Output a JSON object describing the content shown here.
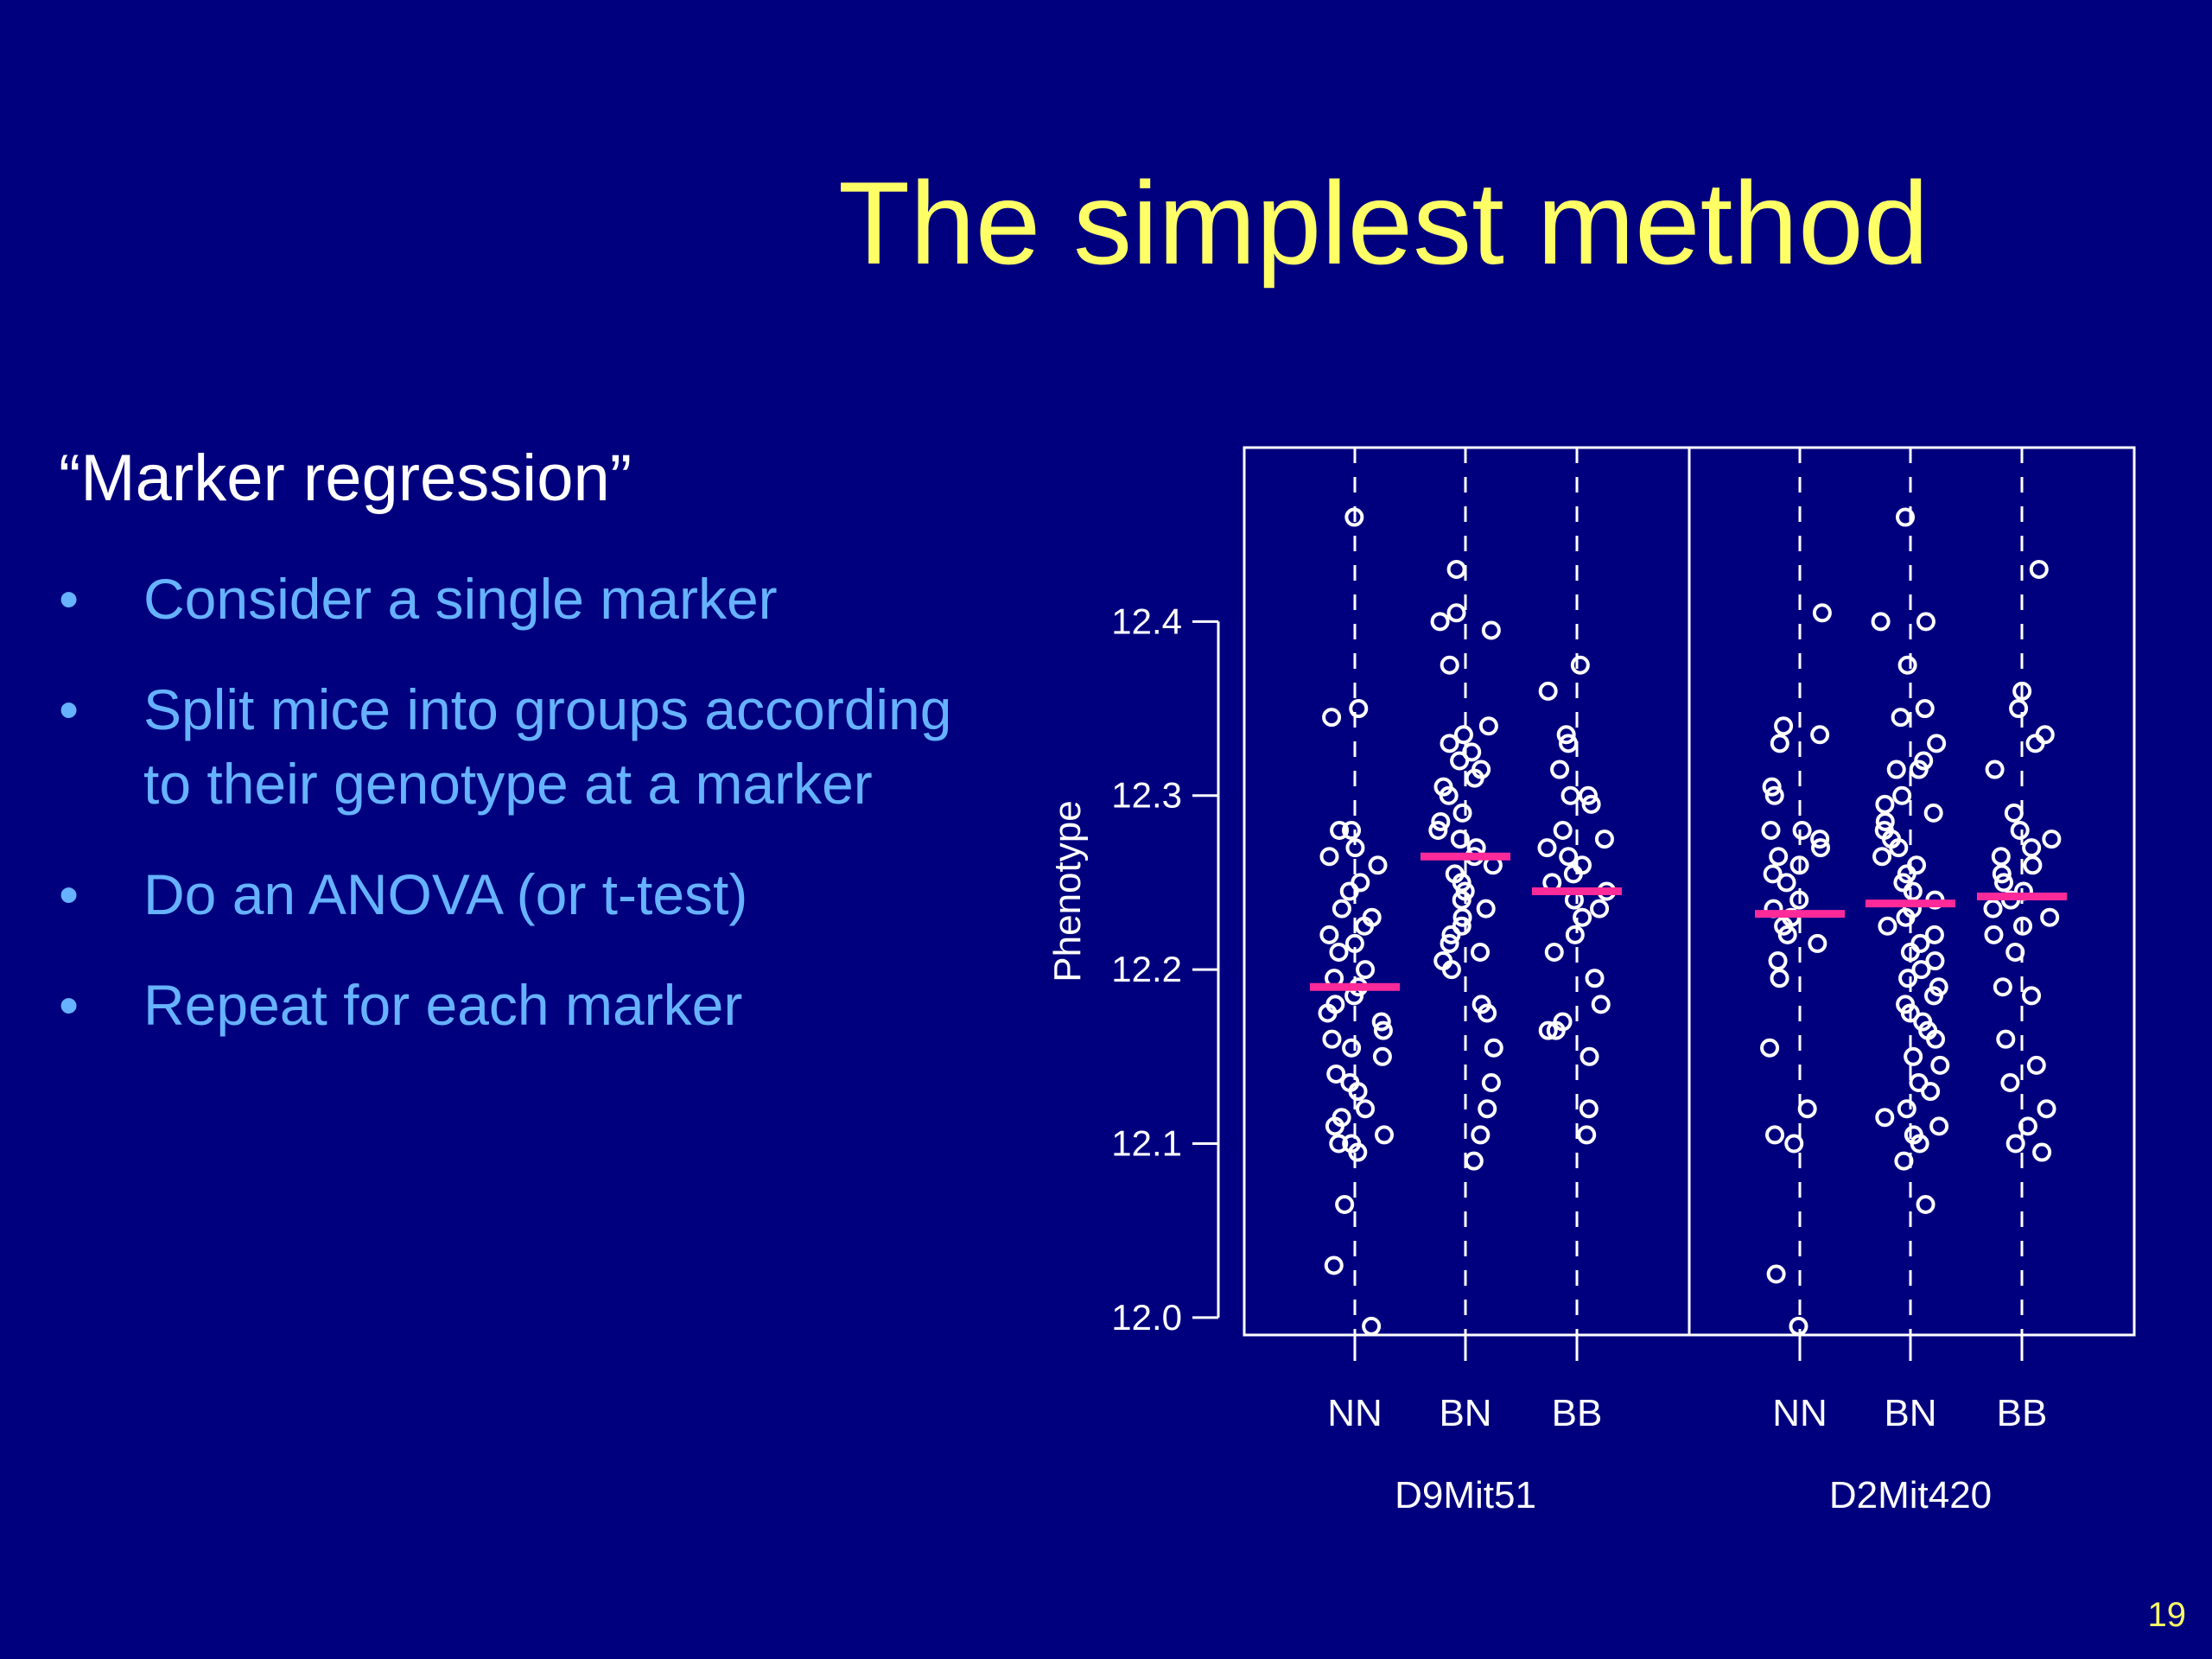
{
  "slide": {
    "title": "The simplest method",
    "heading": "“Marker regression”",
    "bullets": [
      "Consider a single marker",
      "Split mice into groups according to their genotype at a marker",
      "Do an ANOVA (or t-test)",
      "Repeat for each marker"
    ],
    "bullet_symbol": "•",
    "page_number": "19"
  },
  "colors": {
    "background": "#00007f",
    "title": "#ffff66",
    "heading": "#ffffff",
    "bullet_text": "#66b2ff",
    "points": "#ffffff",
    "means": "#ff2a9a"
  },
  "chart_data": {
    "type": "scatter",
    "ylabel": "Phenotype",
    "ylim": [
      11.99,
      12.5
    ],
    "yticks": [
      "12.0",
      "12.1",
      "12.2",
      "12.3",
      "12.4"
    ],
    "yticks_values": [
      12.0,
      12.1,
      12.2,
      12.3,
      12.4
    ],
    "panels": [
      {
        "marker": "D9Mit51",
        "groups": [
          {
            "genotype": "NN",
            "mean": 12.19,
            "values": [
              12.46,
              12.35,
              12.345,
              12.28,
              12.28,
              12.27,
              12.265,
              12.26,
              12.25,
              12.245,
              12.235,
              12.23,
              12.225,
              12.22,
              12.215,
              12.21,
              12.2,
              12.195,
              12.19,
              12.185,
              12.18,
              12.175,
              12.17,
              12.165,
              12.16,
              12.155,
              12.15,
              12.14,
              12.135,
              12.13,
              12.12,
              12.115,
              12.11,
              12.105,
              12.1,
              12.1,
              12.095,
              12.065,
              12.03,
              11.995
            ]
          },
          {
            "genotype": "BN",
            "mean": 12.265,
            "values": [
              12.43,
              12.405,
              12.4,
              12.395,
              12.375,
              12.34,
              12.335,
              12.33,
              12.325,
              12.32,
              12.315,
              12.31,
              12.305,
              12.3,
              12.29,
              12.285,
              12.28,
              12.275,
              12.27,
              12.265,
              12.26,
              12.255,
              12.25,
              12.245,
              12.24,
              12.235,
              12.23,
              12.225,
              12.22,
              12.215,
              12.21,
              12.205,
              12.2,
              12.18,
              12.175,
              12.155,
              12.135,
              12.12,
              12.105,
              12.09
            ]
          },
          {
            "genotype": "BB",
            "mean": 12.245,
            "values": [
              12.375,
              12.36,
              12.335,
              12.33,
              12.315,
              12.3,
              12.3,
              12.295,
              12.28,
              12.275,
              12.27,
              12.265,
              12.26,
              12.255,
              12.25,
              12.245,
              12.24,
              12.235,
              12.23,
              12.22,
              12.21,
              12.195,
              12.18,
              12.17,
              12.165,
              12.165,
              12.15,
              12.12,
              12.105
            ]
          }
        ]
      },
      {
        "marker": "D2Mit420",
        "groups": [
          {
            "genotype": "NN",
            "mean": 12.232,
            "values": [
              12.405,
              12.34,
              12.335,
              12.33,
              12.305,
              12.3,
              12.28,
              12.28,
              12.275,
              12.27,
              12.265,
              12.26,
              12.255,
              12.25,
              12.24,
              12.235,
              12.23,
              12.225,
              12.22,
              12.215,
              12.205,
              12.195,
              12.155,
              12.12,
              12.105,
              12.1,
              12.025,
              11.995
            ]
          },
          {
            "genotype": "BN",
            "mean": 12.238,
            "values": [
              12.46,
              12.4,
              12.4,
              12.375,
              12.35,
              12.345,
              12.33,
              12.32,
              12.315,
              12.315,
              12.3,
              12.295,
              12.29,
              12.285,
              12.28,
              12.275,
              12.27,
              12.265,
              12.26,
              12.255,
              12.25,
              12.245,
              12.24,
              12.235,
              12.23,
              12.225,
              12.22,
              12.215,
              12.21,
              12.205,
              12.2,
              12.195,
              12.19,
              12.185,
              12.18,
              12.175,
              12.17,
              12.165,
              12.16,
              12.15,
              12.145,
              12.135,
              12.13,
              12.12,
              12.115,
              12.11,
              12.105,
              12.1,
              12.09,
              12.065
            ]
          },
          {
            "genotype": "BB",
            "mean": 12.242,
            "values": [
              12.43,
              12.36,
              12.35,
              12.335,
              12.33,
              12.315,
              12.29,
              12.28,
              12.275,
              12.27,
              12.265,
              12.26,
              12.255,
              12.25,
              12.245,
              12.24,
              12.235,
              12.23,
              12.225,
              12.22,
              12.21,
              12.19,
              12.185,
              12.16,
              12.145,
              12.135,
              12.12,
              12.11,
              12.1,
              12.095
            ]
          }
        ]
      }
    ]
  }
}
